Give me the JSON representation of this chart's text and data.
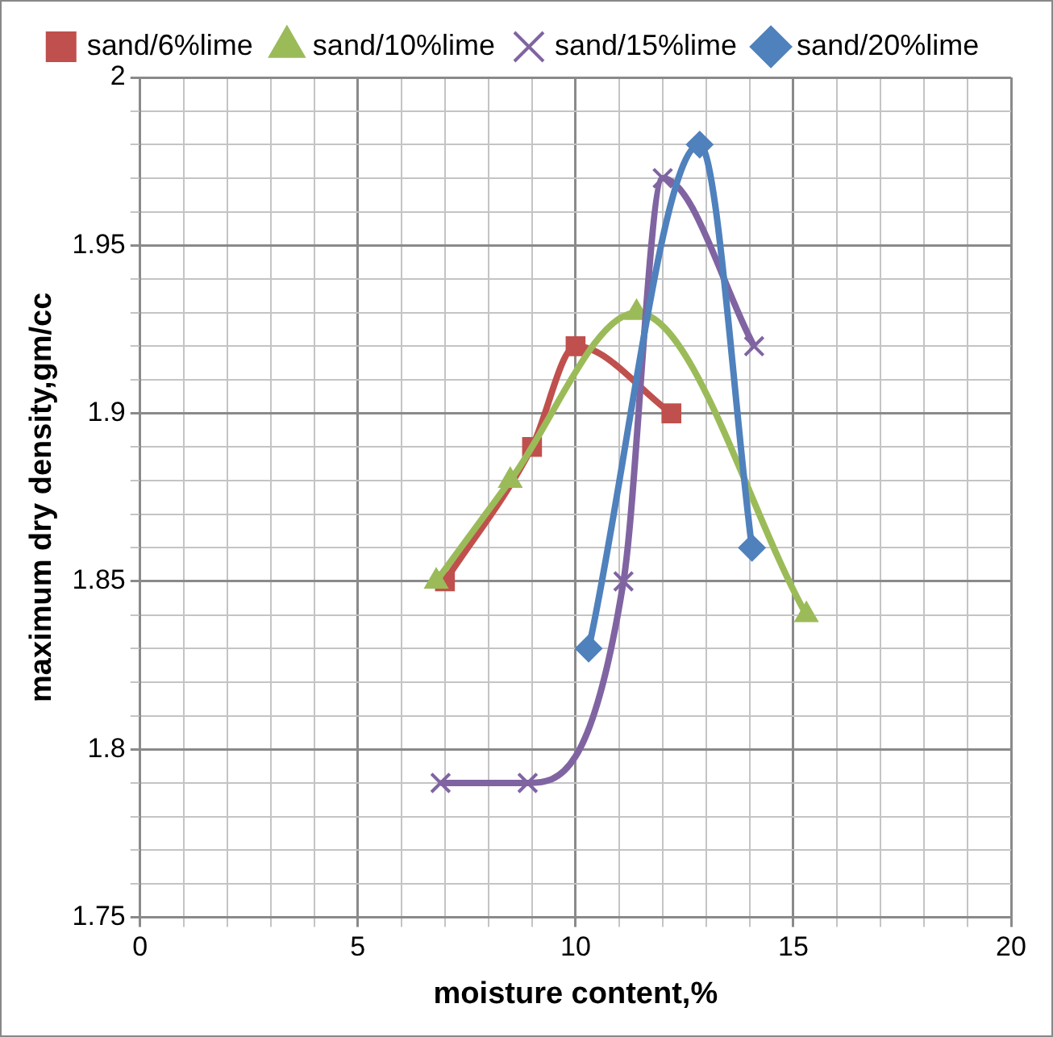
{
  "chart_data": {
    "type": "line",
    "xlabel": "moisture content,%",
    "ylabel": "maximum dry density,gm/cc",
    "xlim": [
      0,
      20
    ],
    "xticks": [
      0,
      {
        "value": 1,
        "label": null
      },
      {
        "value": 2,
        "label": null
      },
      {
        "value": 3,
        "label": null
      },
      {
        "value": 4,
        "label": null
      },
      5,
      {
        "value": 6,
        "label": null
      },
      {
        "value": 7,
        "label": null
      },
      {
        "value": 8,
        "label": null
      },
      {
        "value": 9,
        "label": null
      },
      10,
      {
        "value": 11,
        "label": null
      },
      {
        "value": 12,
        "label": null
      },
      {
        "value": 13,
        "label": null
      },
      {
        "value": 14,
        "label": null
      },
      15,
      {
        "value": 16,
        "label": null
      },
      {
        "value": 17,
        "label": null
      },
      {
        "value": 18,
        "label": null
      },
      {
        "value": 19,
        "label": null
      },
      20
    ],
    "ylim": [
      1.75,
      2
    ],
    "yticks": [
      1.75,
      {
        "value": 1.76,
        "label": null
      },
      {
        "value": 1.77,
        "label": null
      },
      {
        "value": 1.78,
        "label": null
      },
      {
        "value": 1.79,
        "label": null
      },
      1.8,
      {
        "value": 1.81,
        "label": null
      },
      {
        "value": 1.82,
        "label": null
      },
      {
        "value": 1.83,
        "label": null
      },
      {
        "value": 1.84,
        "label": null
      },
      1.85,
      {
        "value": 1.86,
        "label": null
      },
      {
        "value": 1.87,
        "label": null
      },
      {
        "value": 1.88,
        "label": null
      },
      {
        "value": 1.89,
        "label": null
      },
      1.9,
      {
        "value": 1.91,
        "label": null
      },
      {
        "value": 1.92,
        "label": null
      },
      {
        "value": 1.93,
        "label": null
      },
      {
        "value": 1.94,
        "label": null
      },
      1.95,
      {
        "value": 1.96,
        "label": null
      },
      {
        "value": 1.97,
        "label": null
      },
      {
        "value": 1.98,
        "label": null
      },
      {
        "value": 1.99,
        "label": null
      },
      2
    ],
    "grid": true,
    "legend": "top",
    "series": [
      {
        "name": "sand/6%lime",
        "color": "#c0504d",
        "marker": "square",
        "x": [
          7,
          9,
          10,
          12.2
        ],
        "values": [
          1.85,
          1.89,
          1.92,
          1.9
        ]
      },
      {
        "name": "sand/10%lime",
        "color": "#9bbb59",
        "marker": "triangle",
        "x": [
          6.8,
          8.5,
          11.4,
          15.3
        ],
        "values": [
          1.85,
          1.88,
          1.93,
          1.84
        ]
      },
      {
        "name": "sand/15%lime",
        "color": "#8064a2",
        "marker": "cross",
        "x": [
          6.9,
          8.9,
          11.1,
          12,
          14.1
        ],
        "values": [
          1.79,
          1.79,
          1.85,
          1.97,
          1.92
        ]
      },
      {
        "name": "sand/20%lime",
        "color": "#4f81bd",
        "marker": "diamond",
        "x": [
          10.3,
          12.85,
          14.05
        ],
        "values": [
          1.83,
          1.98,
          1.86
        ]
      }
    ]
  }
}
